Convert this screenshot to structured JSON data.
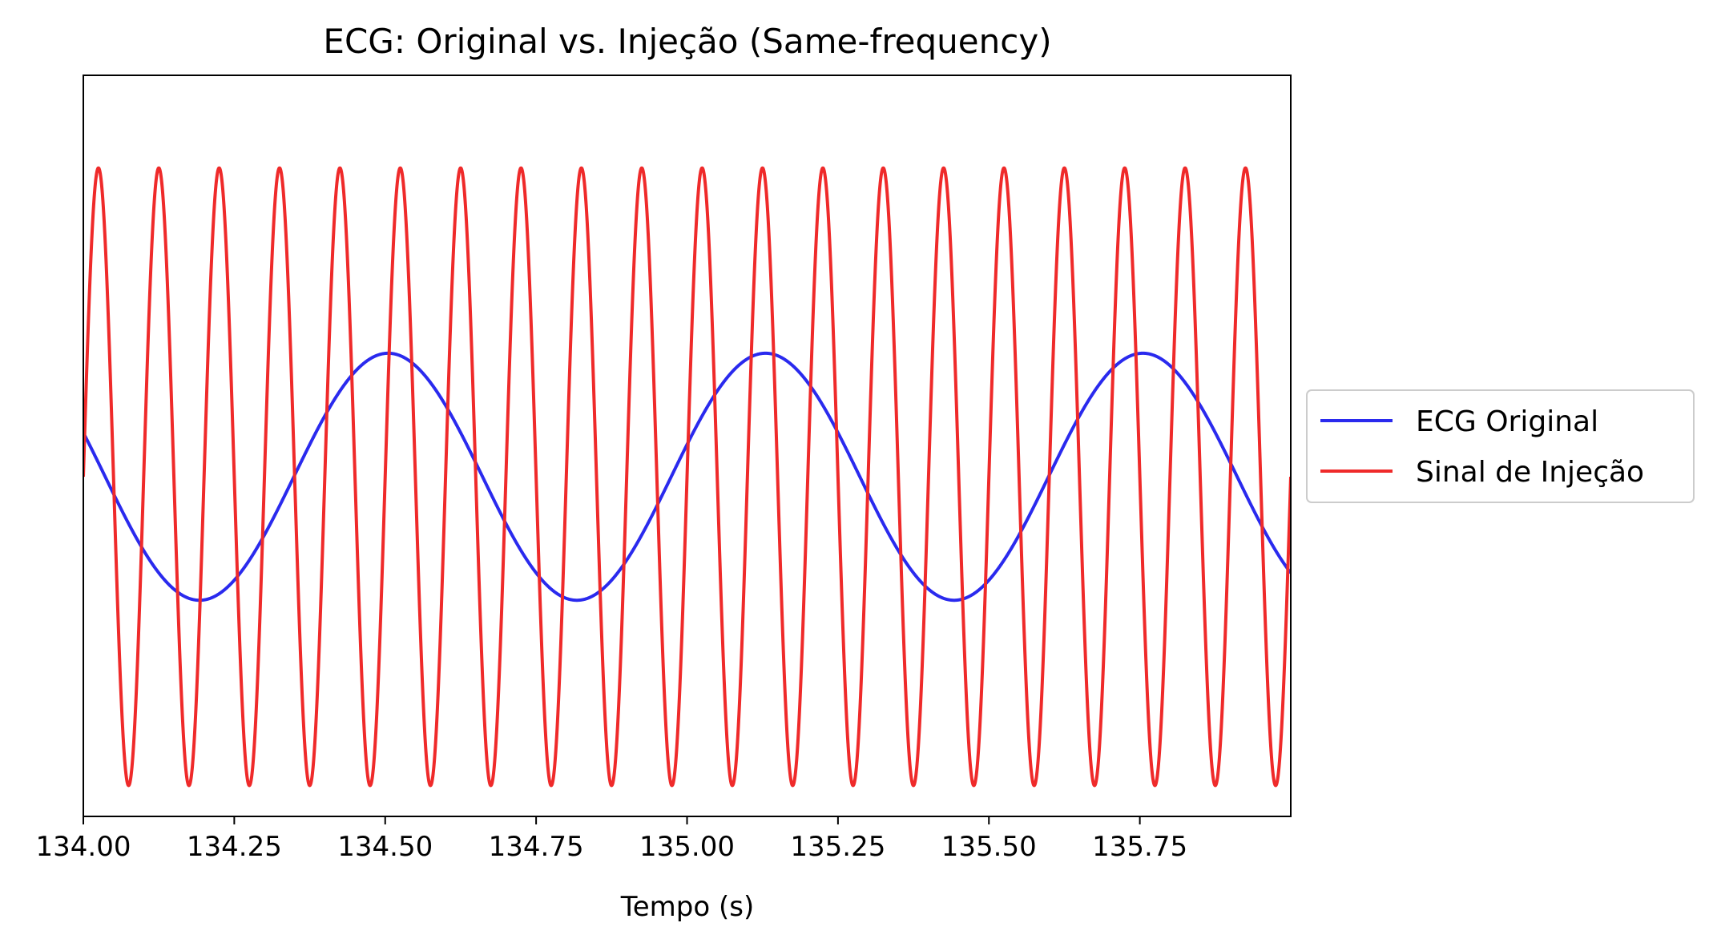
{
  "chart_data": {
    "type": "line",
    "title": "ECG: Original vs. Injeção (Same-frequency)",
    "xlabel": "Tempo (s)",
    "ylabel": "",
    "xlim": [
      134.0,
      136.0
    ],
    "ylim": [
      -1.1,
      1.3
    ],
    "x_ticks": [
      134.0,
      134.25,
      134.5,
      134.75,
      135.0,
      135.25,
      135.5,
      135.75
    ],
    "x_tick_labels": [
      "134.00",
      "134.25",
      "134.50",
      "134.75",
      "135.00",
      "135.25",
      "135.50",
      "135.75"
    ],
    "y_ticks_visible": false,
    "grid": false,
    "legend_position": "outside-right",
    "series": [
      {
        "name": "ECG Original",
        "color": "#2a2aee",
        "function": "sine",
        "amplitude": 0.4,
        "frequency_hz": 1.6,
        "peak_times": [
          134.505,
          135.12,
          135.735
        ],
        "trough_times": [
          134.195,
          134.81,
          135.425
        ],
        "x_start": 134.0,
        "x_end": 136.0
      },
      {
        "name": "Sinal de Injeção",
        "color": "#ef2a2a",
        "function": "sine",
        "amplitude": 1.0,
        "frequency_hz": 10.0,
        "peak_times": [
          134.025,
          134.125,
          134.225,
          134.325,
          134.425,
          134.525,
          134.625,
          134.725,
          134.825,
          134.925,
          135.025,
          135.125,
          135.225,
          135.325,
          135.425,
          135.525,
          135.625,
          135.725,
          135.825,
          135.925
        ],
        "trough_times": [
          134.075,
          134.175,
          134.275,
          134.375,
          134.475,
          134.575,
          134.675,
          134.775,
          134.875,
          134.975,
          135.075,
          135.175,
          135.275,
          135.375,
          135.475,
          135.575,
          135.675,
          135.775,
          135.875,
          135.975
        ],
        "x_start": 134.0,
        "x_end": 136.0
      }
    ]
  }
}
